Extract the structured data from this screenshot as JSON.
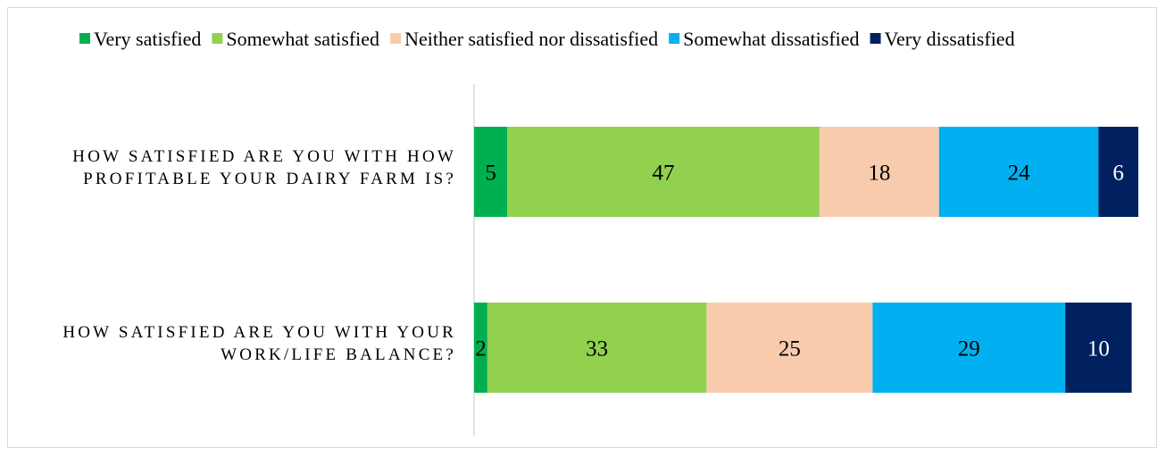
{
  "chart_data": {
    "type": "bar",
    "orientation": "horizontal",
    "stacked": true,
    "title": "",
    "xlabel": "",
    "ylabel": "",
    "xlim": [
      0,
      100
    ],
    "legend_position": "top",
    "grid": false,
    "categories": [
      [
        "HOW SATISFIED ARE YOU WITH HOW",
        "PROFITABLE YOUR DAIRY FARM IS?"
      ],
      [
        "HOW SATISFIED ARE YOU WITH YOUR",
        "WORK/LIFE BALANCE?"
      ]
    ],
    "series": [
      {
        "name": "Very satisfied",
        "color": "#00b050",
        "values": [
          5,
          2
        ]
      },
      {
        "name": "Somewhat satisfied",
        "color": "#92d050",
        "values": [
          47,
          33
        ]
      },
      {
        "name": "Neither satisfied nor dissatisfied",
        "color": "#f8cbad",
        "values": [
          18,
          25
        ]
      },
      {
        "name": "Somewhat dissatisfied",
        "color": "#00b0f0",
        "values": [
          24,
          29
        ]
      },
      {
        "name": "Very dissatisfied",
        "color": "#002060",
        "values": [
          6,
          10
        ]
      }
    ]
  }
}
